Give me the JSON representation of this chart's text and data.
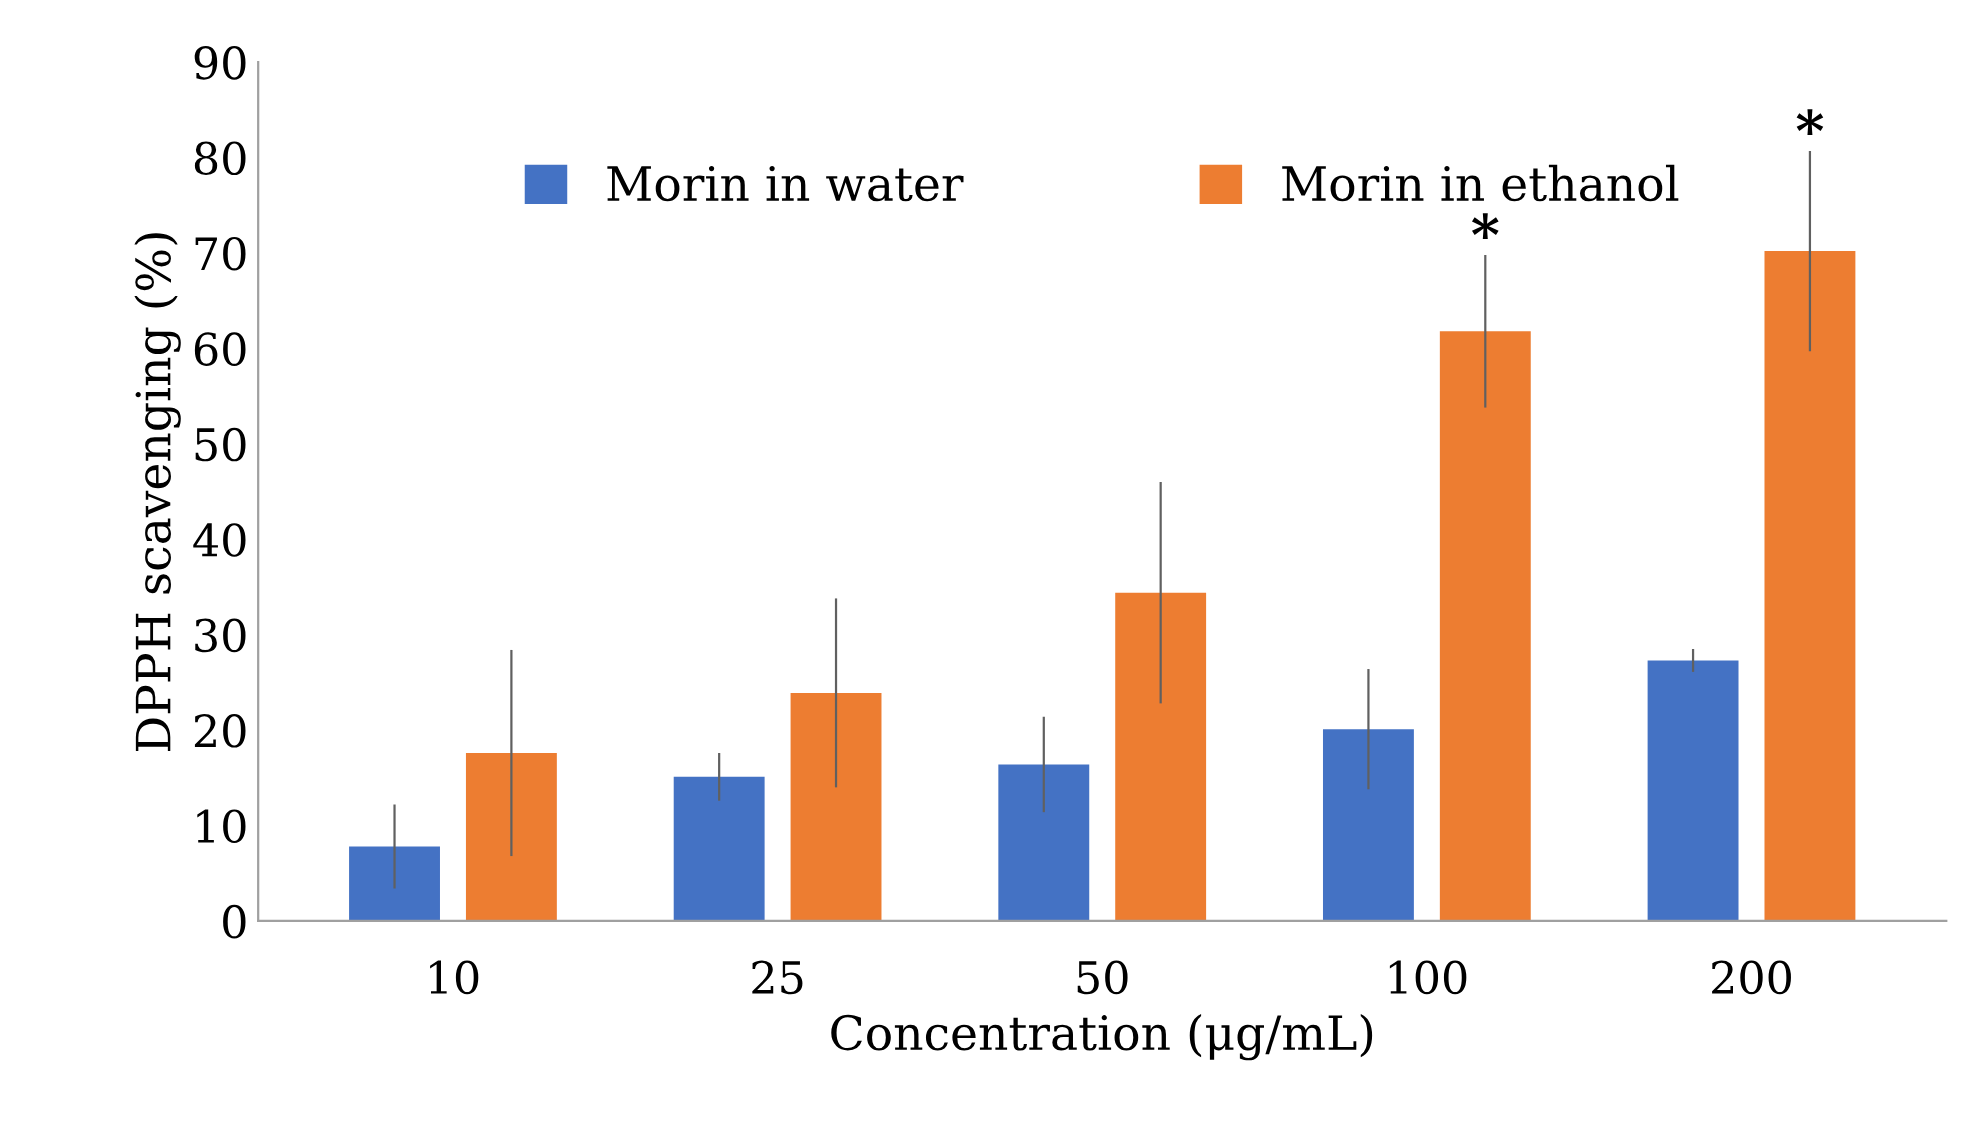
{
  "chart_data": {
    "type": "bar",
    "xlabel": "Concentration (μg/mL)",
    "ylabel": "DPPH scavenging (%)",
    "categories": [
      "10",
      "25",
      "50",
      "100",
      "200"
    ],
    "series": [
      {
        "name": "Morin in water",
        "color": "#4472c4",
        "values": [
          7.8,
          15.1,
          16.4,
          20.1,
          27.3
        ],
        "errors": [
          4.4,
          2.5,
          5.0,
          6.3,
          1.2
        ]
      },
      {
        "name": "Morin in ethanol",
        "color": "#ed7d31",
        "values": [
          17.6,
          23.9,
          34.4,
          61.8,
          70.2
        ],
        "errors": [
          10.8,
          9.9,
          11.6,
          8.0,
          10.5
        ],
        "value_labels": [
          null,
          null,
          null,
          "*",
          "*"
        ]
      }
    ],
    "ylim": [
      0,
      90
    ],
    "yticks": [
      0,
      10,
      20,
      30,
      40,
      50,
      60,
      70,
      80,
      90
    ],
    "legend": "top",
    "grid": false
  }
}
